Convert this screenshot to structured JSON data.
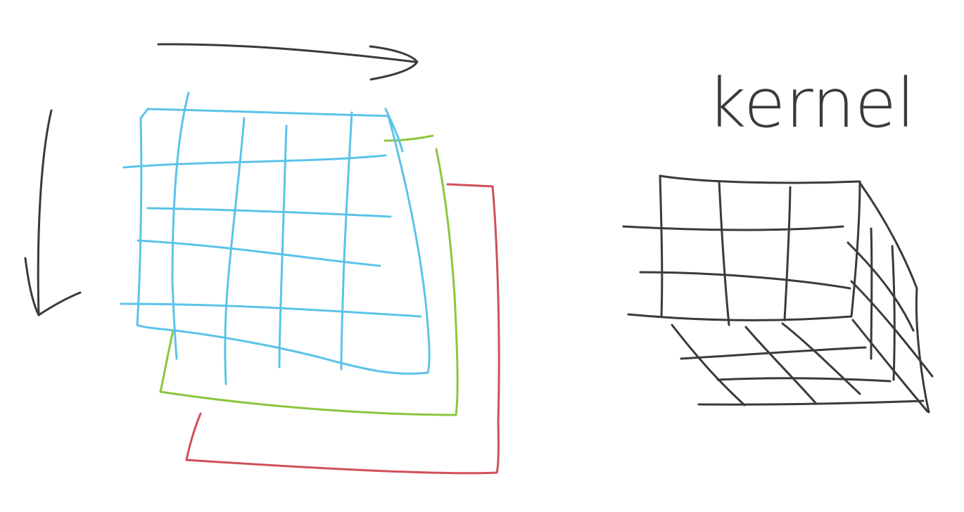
{
  "labels": {
    "kernel": "kernel"
  },
  "colors": {
    "background": "#ffffff",
    "ink": "#3a3a3a",
    "layer_front": "#5bc3e8",
    "layer_middle": "#8cc63f",
    "layer_back": "#d0505a"
  },
  "icons": {
    "horizontal_arrow": "arrow-right-icon",
    "vertical_arrow": "arrow-down-icon"
  }
}
